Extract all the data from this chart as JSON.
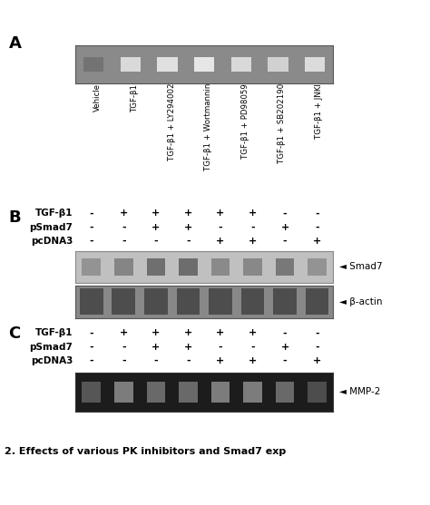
{
  "panel_A_label": "A",
  "panel_B_label": "B",
  "panel_C_label": "C",
  "fig_caption": "2. Effects of various PK inhibitors and Smad7 exp",
  "panel_A": {
    "col_labels": [
      "Vehicle",
      "TGF-β1",
      "TGF-β1 + LY294002",
      "TGF-β1 + Wortmannin",
      "TGF-β1 + PD98059",
      "TGF-β1 + SB202190",
      "TGF-β1 + JNKl"
    ],
    "n_lanes": 7,
    "gel_bg": "#8a8a8a",
    "gel_border": "#444444",
    "band_color": "#d8d8d8",
    "band_intensities": [
      0.45,
      0.85,
      0.88,
      0.9,
      0.85,
      0.82,
      0.86
    ]
  },
  "panel_B": {
    "row_labels": [
      "TGF-β1",
      "pSmad7",
      "pcDNA3"
    ],
    "col_signs": [
      [
        "-",
        "+",
        "+",
        "+",
        "+",
        "+",
        "-",
        "-"
      ],
      [
        "-",
        "-",
        "+",
        "+",
        "-",
        "-",
        "+",
        "-"
      ],
      [
        "-",
        "-",
        "-",
        "-",
        "+",
        "+",
        "-",
        "+"
      ]
    ],
    "blot1_label": "Smad7",
    "blot2_label": "β-actin",
    "smad7_bg": "#c0c0c0",
    "smad7_border": "#888888",
    "actin_bg": "#888888",
    "actin_border": "#555555",
    "smad7_bands": [
      0.3,
      0.45,
      0.7,
      0.72,
      0.4,
      0.42,
      0.6,
      0.3
    ],
    "actin_bands": [
      0.9,
      0.9,
      0.9,
      0.9,
      0.9,
      0.9,
      0.9,
      0.9
    ]
  },
  "panel_C": {
    "row_labels": [
      "TGF-β1",
      "pSmad7",
      "pcDNA3"
    ],
    "col_signs": [
      [
        "-",
        "+",
        "+",
        "+",
        "+",
        "+",
        "-",
        "-"
      ],
      [
        "-",
        "-",
        "+",
        "+",
        "-",
        "-",
        "+",
        "-"
      ],
      [
        "-",
        "-",
        "-",
        "-",
        "+",
        "+",
        "-",
        "+"
      ]
    ],
    "gel_label": "MMP-2",
    "gel_bg": "#1c1c1c",
    "gel_border": "#000000",
    "band_color": "#666666",
    "band_intensities": [
      0.45,
      0.65,
      0.55,
      0.55,
      0.65,
      0.65,
      0.55,
      0.4
    ]
  },
  "background_color": "#ffffff",
  "label_fontsize": 13,
  "text_fontsize": 7.5,
  "sign_fontsize": 8,
  "caption_fontsize": 8
}
